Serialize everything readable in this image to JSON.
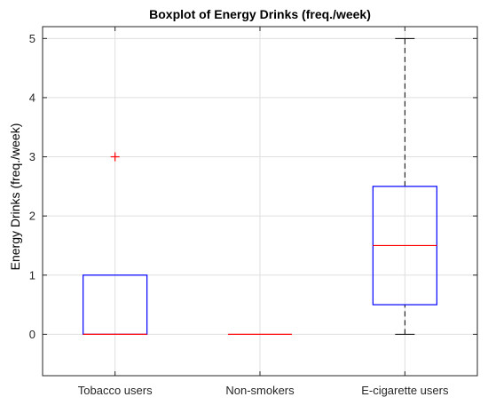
{
  "chart_data": {
    "type": "boxplot",
    "title": "Boxplot of Energy Drinks (freq./week)",
    "xlabel": "",
    "ylabel": "Energy Drinks (freq./week)",
    "ylim": [
      -0.7,
      5.2
    ],
    "yticks": [
      0,
      1,
      2,
      3,
      4,
      5
    ],
    "grid": true,
    "categories": [
      "Tobacco users",
      "Non-smokers",
      "E-cigarette users"
    ],
    "boxes": [
      {
        "category": "Tobacco users",
        "min": 0,
        "q1": 0,
        "median": 0,
        "q3": 1,
        "max": 1,
        "outliers": [
          3
        ]
      },
      {
        "category": "Non-smokers",
        "min": 0,
        "q1": 0,
        "median": 0,
        "q3": 0,
        "max": 0,
        "outliers": []
      },
      {
        "category": "E-cigarette users",
        "min": 0,
        "q1": 0.5,
        "median": 1.5,
        "q3": 2.5,
        "max": 5,
        "outliers": []
      }
    ],
    "colors": {
      "box": "#0000ff",
      "median": "#ff0000",
      "whisker": "#000000",
      "outlier": "#ff0000",
      "grid": "#dfdfdf",
      "axis": "#262626"
    }
  }
}
